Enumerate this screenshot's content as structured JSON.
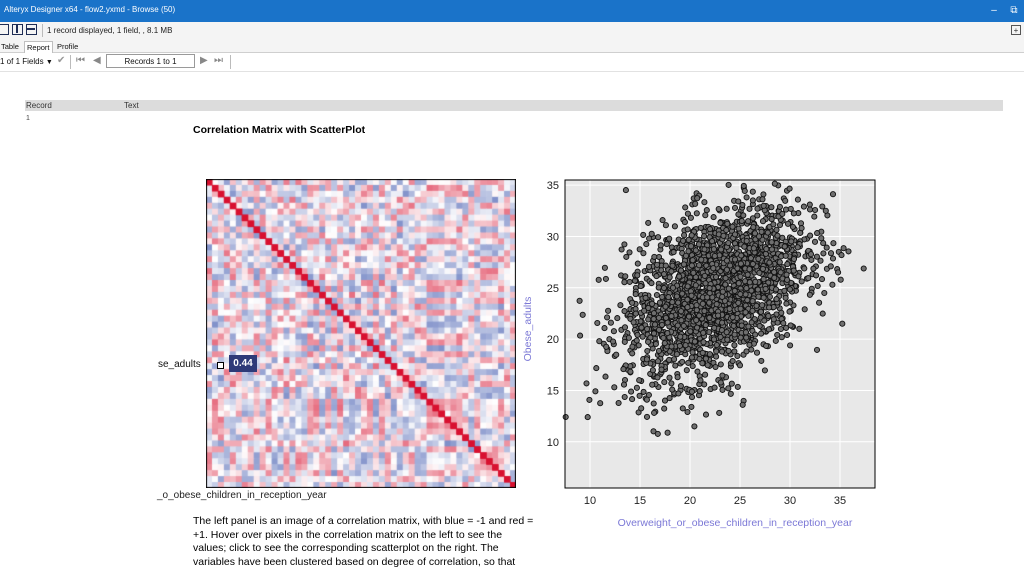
{
  "window": {
    "title": "Alteryx Designer x64 - flow2.yxmd - Browse (50)",
    "minimize_icon": "minimize-icon",
    "restore_icon": "restore-icon"
  },
  "toolbar": {
    "status": "1 record displayed, 1 field, , 8.1 MB"
  },
  "tabs": [
    {
      "label": "Table"
    },
    {
      "label": "Report"
    },
    {
      "label": "Profile"
    }
  ],
  "nav": {
    "fields_label": "1 of 1 Fields",
    "records_label": "Records 1 to 1"
  },
  "grid": {
    "columns": [
      "Record",
      "Text"
    ],
    "row_number": "1"
  },
  "report": {
    "title": "Correlation Matrix with ScatterPlot",
    "matrix_row_label": "se_adults",
    "matrix_col_label": "_o_obese_children_in_reception_year",
    "tooltip_value": "0.44",
    "description": "The left panel is an image of a correlation matrix, with blue = -1 and red = +1. Hover over pixels in the correlation matrix on the left to see the values; click to see the corresponding scatterplot on the right. The variables have been clustered based on degree of correlation, so that"
  },
  "colors": {
    "titlebar": "#1a73c9",
    "axis_label": "#7b78d6",
    "matrix_negative": "#2f4aa8",
    "matrix_positive": "#d8102f",
    "tooltip_bg": "#2e3a78",
    "plot_bg": "#e8e8e8"
  },
  "chart_data": [
    {
      "type": "heatmap",
      "description_of_scale": "blue = -1, red = +1",
      "variables_count": 52,
      "highlighted_cell": {
        "row": "Obese_adults",
        "col": "Overweight_or_obese_children_in_reception_year",
        "value": 0.44
      }
    },
    {
      "type": "scatter",
      "xlabel": "Overweight_or_obese_children_in_reception_year",
      "ylabel": "Obese_adults",
      "xlim": [
        7.5,
        38.5
      ],
      "ylim": [
        5.5,
        35.5
      ],
      "xticks": [
        10,
        15,
        20,
        25,
        30,
        35
      ],
      "yticks": [
        10,
        15,
        20,
        25,
        30,
        35
      ],
      "grid": true,
      "n_points": 2200,
      "center": {
        "x": 22.5,
        "y": 24.5
      },
      "spread": {
        "x": 4.5,
        "y": 4.3
      },
      "correlation": 0.44
    }
  ]
}
